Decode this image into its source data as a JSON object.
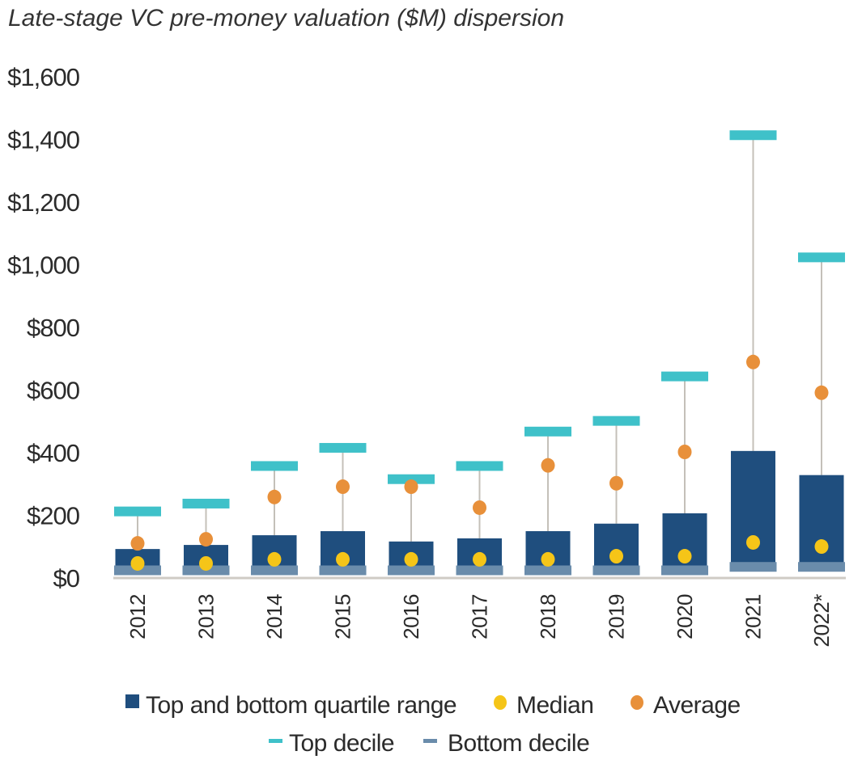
{
  "chart_data": {
    "type": "box-range",
    "title": "Late-stage VC pre-money valuation ($M) dispersion",
    "xlabel": "",
    "ylabel": "",
    "ylim": [
      0,
      1600
    ],
    "yticks": [
      0,
      200,
      400,
      600,
      800,
      1000,
      1200,
      1400,
      1600
    ],
    "ytick_labels": [
      "$0",
      "$200",
      "$400",
      "$600",
      "$800",
      "$1,000",
      "$1,200",
      "$1,400",
      "$1,600"
    ],
    "categories": [
      "2012",
      "2013",
      "2014",
      "2015",
      "2016",
      "2017",
      "2018",
      "2019",
      "2020",
      "2021",
      "2022*"
    ],
    "series": [
      {
        "name": "Top decile",
        "values": [
          210,
          235,
          355,
          413,
          313,
          355,
          465,
          499,
          641,
          1411,
          1021
        ]
      },
      {
        "name": "Top and bottom quartile range (top quartile)",
        "values": [
          90,
          103,
          134,
          147,
          114,
          124,
          147,
          171,
          204,
          403,
          326
        ]
      },
      {
        "name": "Top and bottom quartile range (bottom quartile)",
        "values": [
          25,
          25,
          25,
          25,
          25,
          25,
          25,
          25,
          25,
          36,
          36
        ]
      },
      {
        "name": "Median",
        "values": [
          44,
          44,
          57,
          57,
          57,
          57,
          57,
          67,
          67,
          111,
          98
        ]
      },
      {
        "name": "Average",
        "values": [
          108,
          121,
          256,
          289,
          289,
          222,
          357,
          300,
          400,
          687,
          589
        ]
      },
      {
        "name": "Bottom decile",
        "values": [
          22,
          22,
          22,
          22,
          22,
          22,
          22,
          22,
          22,
          33,
          33
        ]
      }
    ],
    "legend": {
      "placement": "bottom",
      "items": [
        "Top and bottom quartile range",
        "Median",
        "Average",
        "Top decile",
        "Bottom decile"
      ]
    },
    "colors": {
      "quartile": "#1f4e7e",
      "median": "#f5c518",
      "average": "#e8903a",
      "top_decile": "#3fc1c9",
      "bottom_decile": "#6a8cab",
      "whisker": "#c4c0b9",
      "axis": "#cfcbc4"
    }
  }
}
